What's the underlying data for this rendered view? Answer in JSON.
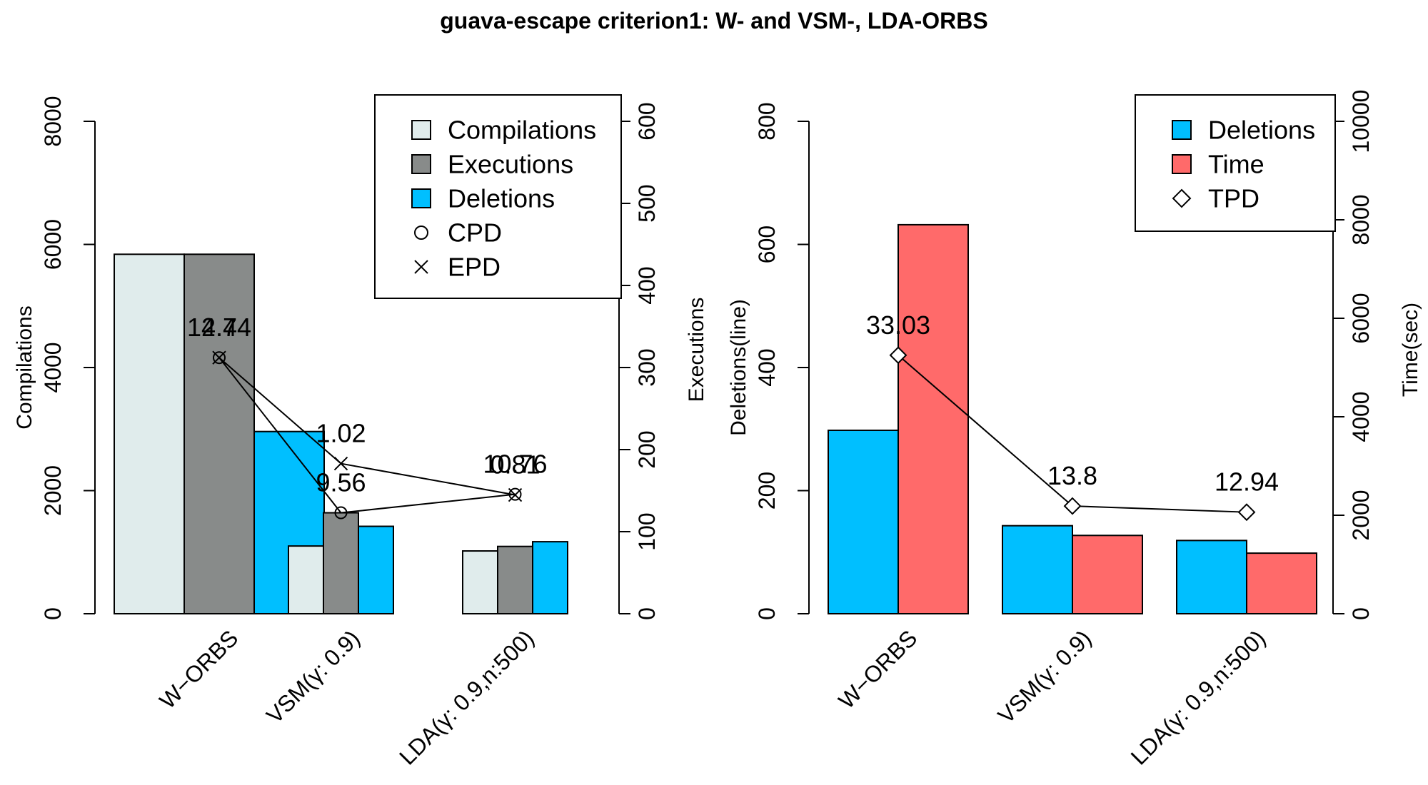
{
  "title": "guava-escape criterion1: W- and VSM-, LDA-ORBS",
  "colors": {
    "compilations": "#e0ecec",
    "executions": "#888b8a",
    "deletions": "#00bfff",
    "time": "#ff6a6a",
    "line": "#000000"
  },
  "chart_data": [
    {
      "type": "bar",
      "panel": "left",
      "categories": [
        "W−ORBS",
        "VSM(γ: 0.9)",
        "LDA(γ: 0.9,n:500)"
      ],
      "series": [
        {
          "name": "Compilations",
          "axis": "left",
          "values": [
            5840,
            1100,
            1020
          ]
        },
        {
          "name": "Executions",
          "axis": "right",
          "values": [
            438,
            123,
            82
          ]
        },
        {
          "name": "Deletions",
          "axis": "left",
          "values": [
            2960,
            1420,
            1170
          ]
        }
      ],
      "overlays": [
        {
          "name": "CPD",
          "marker": "circle",
          "y_left": [
            4160,
            1640,
            1940
          ],
          "labels": [
            "2.7",
            "9.56",
            "10.76"
          ]
        },
        {
          "name": "EPD",
          "marker": "cross",
          "y_left": [
            4160,
            2440,
            1930
          ],
          "labels": [
            "14.44",
            "1.02",
            "0.81"
          ]
        }
      ],
      "ylabel_left": "Compilations",
      "ylabel_right": "Executions",
      "ylim_left": [
        0,
        8000
      ],
      "ylim_right": [
        0,
        600
      ],
      "yticks_left": [
        "0",
        "2000",
        "4000",
        "6000",
        "8000"
      ],
      "yticks_right": [
        "0",
        "100",
        "200",
        "300",
        "400",
        "500",
        "600"
      ],
      "legend": {
        "position": "top-right",
        "items": [
          {
            "label": "Compilations",
            "kind": "box",
            "color": "#e0ecec"
          },
          {
            "label": "Executions",
            "kind": "box",
            "color": "#888b8a"
          },
          {
            "label": "Deletions",
            "kind": "box",
            "color": "#00bfff"
          },
          {
            "label": "CPD",
            "kind": "circle"
          },
          {
            "label": "EPD",
            "kind": "cross"
          }
        ]
      }
    },
    {
      "type": "bar",
      "panel": "right",
      "categories": [
        "W−ORBS",
        "VSM(γ: 0.9)",
        "LDA(γ: 0.9,n:500)"
      ],
      "series": [
        {
          "name": "Deletions",
          "axis": "left",
          "values": [
            298,
            143,
            119
          ]
        },
        {
          "name": "Time",
          "axis": "right",
          "values": [
            7900,
            1590,
            1230
          ]
        }
      ],
      "overlays": [
        {
          "name": "TPD",
          "marker": "diamond",
          "y_left": [
            420,
            175,
            165
          ],
          "labels": [
            "33.03",
            "13.8",
            "12.94"
          ]
        }
      ],
      "ylabel_left": "Deletions(line)",
      "ylabel_right": "Time(sec)",
      "ylim_left": [
        0,
        800
      ],
      "ylim_right": [
        0,
        10000
      ],
      "yticks_left": [
        "0",
        "200",
        "400",
        "600",
        "800"
      ],
      "yticks_right": [
        "0",
        "2000",
        "4000",
        "6000",
        "8000",
        "10000"
      ],
      "legend": {
        "position": "top-right",
        "items": [
          {
            "label": "Deletions",
            "kind": "box",
            "color": "#00bfff"
          },
          {
            "label": "Time",
            "kind": "box",
            "color": "#ff6a6a"
          },
          {
            "label": "TPD",
            "kind": "diamond"
          }
        ]
      }
    }
  ]
}
